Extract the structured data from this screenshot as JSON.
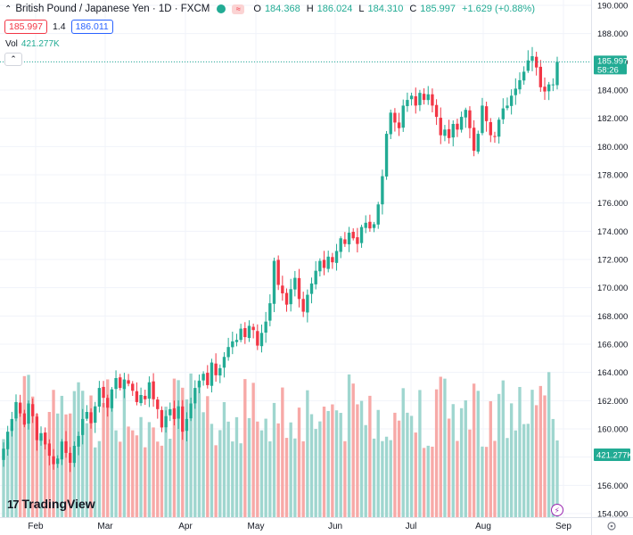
{
  "header": {
    "symbol_title": "British Pound / Japanese Yen · 1D · FXCM",
    "open_label": "O",
    "open": "184.368",
    "high_label": "H",
    "high": "186.024",
    "low_label": "L",
    "low": "184.310",
    "close_label": "C",
    "close": "185.997",
    "change": "+1.629 (+0.88%)",
    "bid": "185.997",
    "spread": "1.4",
    "ask": "186.011"
  },
  "volume_legend": {
    "label": "Vol",
    "value": "421.277K"
  },
  "price_tag": {
    "price": "185.997",
    "countdown": "58:26"
  },
  "volume_tag": "421.277K",
  "brand": "TradingView",
  "colors": {
    "up": "#22ab94",
    "down": "#f23645",
    "vol_up": "#9fd6cf",
    "vol_down": "#f7a9a7",
    "grid": "#f0f3fa",
    "axis_text": "#131722"
  },
  "chart_data": {
    "type": "candlestick",
    "y_axis_ticks": [
      "190.000",
      "188.000",
      "186.000",
      "184.000",
      "182.000",
      "180.000",
      "178.000",
      "176.000",
      "174.000",
      "172.000",
      "170.000",
      "168.000",
      "166.000",
      "164.000",
      "162.000",
      "160.000",
      "158.000",
      "156.000",
      "154.000"
    ],
    "ylim": [
      154,
      190
    ],
    "x_axis_ticks": [
      "Feb",
      "Mar",
      "Apr",
      "May",
      "Jun",
      "Jul",
      "Aug",
      "Sep"
    ],
    "candle_closes": [
      158.6,
      159.8,
      160.7,
      161.9,
      161.1,
      160.3,
      161.8,
      160.9,
      159.2,
      159.7,
      158.9,
      158.1,
      157.5,
      157.9,
      159.1,
      158.3,
      157.6,
      158.8,
      159.5,
      160.7,
      161.2,
      160.4,
      161.6,
      162.9,
      162.2,
      161.5,
      162.8,
      163.6,
      162.9,
      163.5,
      163.2,
      162.7,
      161.9,
      162.4,
      162.1,
      163.3,
      162.1,
      161.4,
      160.1,
      160.9,
      161.4,
      160.7,
      161.6,
      159.8,
      160.7,
      161.8,
      162.9,
      163.4,
      163.9,
      163.1,
      164.7,
      163.8,
      164.3,
      165.1,
      165.8,
      166.2,
      166.3,
      167.1,
      166.5,
      167.3,
      167.0,
      165.9,
      166.8,
      167.6,
      168.9,
      171.9,
      170.2,
      169.6,
      168.8,
      169.9,
      170.7,
      169.2,
      168.3,
      169.5,
      170.3,
      171.2,
      171.9,
      171.4,
      172.2,
      171.8,
      172.6,
      173.5,
      173.1,
      173.9,
      173.5,
      173.1,
      174.3,
      174.6,
      174.2,
      174.5,
      175.9,
      177.9,
      180.9,
      182.4,
      181.7,
      181.3,
      182.9,
      183.3,
      183.6,
      182.9,
      183.8,
      183.3,
      183.7,
      182.9,
      182.1,
      180.8,
      181.2,
      180.6,
      181.6,
      181.2,
      182.1,
      182.6,
      181.3,
      179.7,
      180.9,
      182.9,
      181.8,
      180.8,
      180.7,
      181.9,
      182.7,
      182.9,
      183.6,
      184.1,
      184.7,
      185.3,
      186.1,
      186.4,
      185.6,
      184.2,
      183.9,
      184.4,
      184.4,
      185.997
    ],
    "volume_range_k": [
      0,
      1400
    ],
    "last_volume": "421.277K"
  }
}
